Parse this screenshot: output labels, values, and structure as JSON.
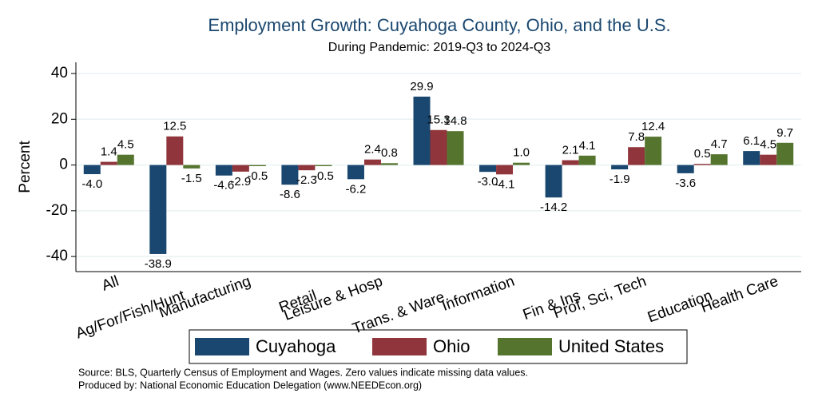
{
  "chart_data": {
    "type": "bar",
    "title": "Employment Growth: Cuyahoga County, Ohio, and the U.S.",
    "subtitle": "During Pandemic: 2019-Q3 to 2024-Q3",
    "y_label": "Percent",
    "categories": [
      "All",
      "Ag/For/Fish/Hunt",
      "Manufacturing",
      "Retail",
      "Leisure & Hosp",
      "Trans. & Ware.",
      "Information",
      "Fin & Ins",
      "Prof, Sci, Tech",
      "Education",
      "Health Care"
    ],
    "series": [
      {
        "name": "Cuyahoga",
        "color": "#1a476f",
        "values": [
          -4.0,
          -38.9,
          -4.6,
          -8.6,
          -6.2,
          29.9,
          -3.0,
          -14.2,
          -1.9,
          -3.6,
          6.1
        ],
        "value_labels": [
          "-4.0",
          "-38.9",
          "-4.6",
          "-8.6",
          "-6.2",
          "29.9",
          "-3.0",
          "-14.2",
          "-1.9",
          "-3.6",
          "6.1"
        ]
      },
      {
        "name": "Ohio",
        "color": "#90353b",
        "values": [
          1.4,
          12.5,
          -2.9,
          -2.3,
          2.4,
          15.3,
          -4.1,
          2.1,
          7.8,
          0.5,
          4.5
        ],
        "value_labels": [
          "1.4",
          "12.5",
          "-2.9",
          "-2.3",
          "2.4",
          "15.3",
          "-4.1",
          "2.1",
          "7.8",
          "0.5",
          "4.5"
        ]
      },
      {
        "name": "United States",
        "color": "#55752f",
        "values": [
          4.5,
          -1.5,
          -0.5,
          -0.5,
          0.8,
          14.8,
          1.0,
          4.1,
          12.4,
          4.7,
          9.7
        ],
        "value_labels": [
          "4.5",
          "-1.5",
          "-0.5",
          "-0.5",
          "0.8",
          "14.8",
          "1.0",
          "4.1",
          "12.4",
          "4.7",
          "9.7"
        ]
      }
    ],
    "ylim": [
      -46.6,
      44.9
    ],
    "yticks": [
      -40,
      -20,
      0,
      20,
      40
    ],
    "grid": true,
    "legend": "bottom",
    "notes": [
      "Source: BLS, Quarterly Census of Employment and Wages. Zero values indicate missing data values.",
      "Produced by: National Economic Education Delegation (www.NEEDEcon.org)"
    ]
  }
}
